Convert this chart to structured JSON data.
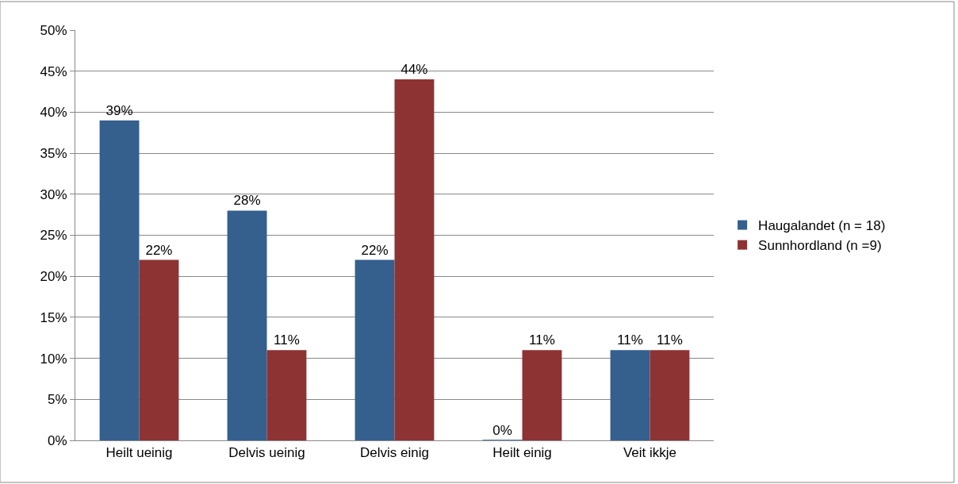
{
  "chart_data": {
    "type": "bar",
    "categories": [
      "Heilt ueinig",
      "Delvis ueinig",
      "Delvis einig",
      "Heilt einig",
      "Veit ikkje"
    ],
    "series": [
      {
        "name": "Haugalandet (n = 18)",
        "color": "#355f8d",
        "values": [
          39,
          28,
          22,
          0,
          11
        ],
        "value_labels": [
          "39%",
          "28%",
          "22%",
          "0%",
          "11%"
        ]
      },
      {
        "name": "Sunnhordland (n =9)",
        "color": "#8e3334",
        "values": [
          22,
          11,
          44,
          11,
          11
        ],
        "value_labels": [
          "22%",
          "11%",
          "44%",
          "11%",
          "11%"
        ]
      }
    ],
    "ylim": [
      0,
      50
    ],
    "yticks": [
      {
        "value": 0,
        "label": "0%"
      },
      {
        "value": 5,
        "label": "5%"
      },
      {
        "value": 10,
        "label": "10%"
      },
      {
        "value": 15,
        "label": "15%"
      },
      {
        "value": 20,
        "label": "20%"
      },
      {
        "value": 25,
        "label": "25%"
      },
      {
        "value": 30,
        "label": "30%"
      },
      {
        "value": 35,
        "label": "35%"
      },
      {
        "value": 40,
        "label": "40%"
      },
      {
        "value": 45,
        "label": "45%"
      },
      {
        "value": 50,
        "label": "50%"
      }
    ],
    "grid": "y",
    "legend": "right"
  }
}
